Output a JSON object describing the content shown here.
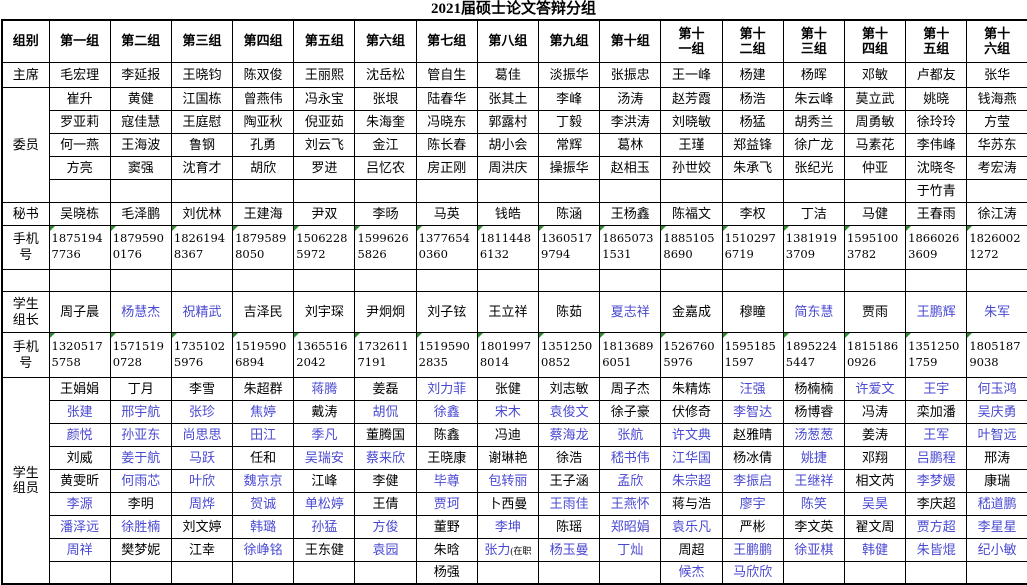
{
  "title": "2021届硕士论文答辩分组",
  "colors": {
    "name_blue": "#4a49d2",
    "corner_green": "#2e8b2e"
  },
  "table": {
    "corner_label": "组别",
    "group_headers": [
      "第一组",
      "第二组",
      "第三组",
      "第四组",
      "第五组",
      "第六组",
      "第七组",
      "第八组",
      "第九组",
      "第十组",
      "第十\n一组",
      "第十\n二组",
      "第十\n三组",
      "第十\n四组",
      "第十\n五组",
      "第十\n六组"
    ],
    "sections": [
      {
        "label": "主席",
        "rows": [
          [
            "毛宏理",
            "李延报",
            "王晓钧",
            "陈双俊",
            "王丽熙",
            "沈岳松",
            "管自生",
            "葛佳",
            "淡振华",
            "张振忠",
            "王一峰",
            "杨建",
            "杨晖",
            "邓敏",
            "卢都友",
            "张华"
          ]
        ]
      },
      {
        "label": "委员",
        "rows": [
          [
            "崔升",
            "黄健",
            "江国栋",
            "曾燕伟",
            "冯永宝",
            "张垠",
            "陆春华",
            "张其土",
            "李峰",
            "汤涛",
            "赵芳霞",
            "杨浩",
            "朱云峰",
            "莫立武",
            "姚晓",
            "钱海燕"
          ],
          [
            "罗亚莉",
            "寇佳慧",
            "王庭慰",
            "陶亚秋",
            "倪亚茹",
            "朱海奎",
            "冯晓东",
            "郭露村",
            "丁毅",
            "李洪涛",
            "刘晓敏",
            "杨猛",
            "胡秀兰",
            "周勇敏",
            "徐玲玲",
            "方莹"
          ],
          [
            "何一燕",
            "王海波",
            "鲁钢",
            "孔勇",
            "刘云飞",
            "金江",
            "陈长春",
            "胡小会",
            "常辉",
            "葛林",
            "王瑾",
            "郑益锋",
            "徐广龙",
            "马素花",
            "李伟峰",
            "华苏东"
          ],
          [
            "方亮",
            "窦强",
            "沈育才",
            "胡欣",
            "罗进",
            "吕忆农",
            "房正刚",
            "周洪庆",
            "操振华",
            "赵相玉",
            "孙世姣",
            "朱承飞",
            "张纪光",
            "仲亚",
            "沈晓冬",
            "考宏涛"
          ],
          [
            "",
            "",
            "",
            "",
            "",
            "",
            "",
            "",
            "",
            "",
            "",
            "",
            "",
            "",
            "于竹青",
            ""
          ]
        ]
      },
      {
        "label": "秘书",
        "rows": [
          [
            "吴晓栋",
            "毛泽鹏",
            "刘优林",
            "王建海",
            "尹双",
            "李旸",
            "马英",
            "钱皓",
            "陈涵",
            "王杨鑫",
            "陈福文",
            "李权",
            "丁洁",
            "马健",
            "王春雨",
            "徐江涛"
          ]
        ]
      },
      {
        "label": "手机\n号",
        "phone": true,
        "rows": [
          [
            "18751947736",
            "18795900176",
            "18261948367",
            "18795898050",
            "15062285972",
            "15996265826",
            "13776540360",
            "18114486132",
            "13605179794",
            "18650731531",
            "18851058690",
            "15102976719",
            "13819193709",
            "15951003782",
            "18660263609",
            "18260021272"
          ]
        ]
      },
      {
        "label": "",
        "rows": [
          [
            "",
            "",
            "",
            "",
            "",
            "",
            "",
            "",
            "",
            "",
            "",
            "",
            "",
            "",
            "",
            ""
          ]
        ]
      },
      {
        "label": "学生\n组长",
        "rows": [
          [
            "周子晨",
            {
              "t": "杨慧杰",
              "b": 1
            },
            {
              "t": "祝精武",
              "b": 1
            },
            "吉泽民",
            "刘宇琛",
            "尹炯炯",
            "刘子铉",
            "王立祥",
            "陈茹",
            {
              "t": "夏志祥",
              "b": 1
            },
            "金嘉成",
            "穆瞳",
            {
              "t": "简东慧",
              "b": 1
            },
            "贾雨",
            {
              "t": "王鹏辉",
              "b": 1
            },
            {
              "t": "朱军",
              "b": 1
            }
          ]
        ]
      },
      {
        "label": "手机\n号",
        "phone": true,
        "rows": [
          [
            "13205175758",
            "15715190728",
            "17351025976",
            "15195906894",
            "13655162042",
            "17326117191",
            "15195902835",
            "18019978014",
            "13512500852",
            "18136896051",
            "15267605976",
            "15951851597",
            "18952245447",
            "18151860926",
            "13512501759",
            "18051879038"
          ]
        ]
      },
      {
        "label": "学生\n组员",
        "rows": [
          [
            "王娟娟",
            "丁月",
            "李雪",
            "朱超群",
            {
              "t": "蒋腾",
              "b": 1
            },
            "姜磊",
            {
              "t": "刘力菲",
              "b": 1
            },
            "张健",
            "刘志敏",
            "周子杰",
            "朱精炼",
            {
              "t": "汪强",
              "b": 1
            },
            "杨楠楠",
            {
              "t": "许爱文",
              "b": 1
            },
            {
              "t": "王宇",
              "b": 1
            },
            {
              "t": "何玉鸿",
              "b": 1
            }
          ],
          [
            {
              "t": "张建",
              "b": 1
            },
            {
              "t": "邢宇航",
              "b": 1
            },
            {
              "t": "张珍",
              "b": 1
            },
            {
              "t": "焦婷",
              "b": 1
            },
            "戴涛",
            {
              "t": "胡侃",
              "b": 1
            },
            {
              "t": "徐鑫",
              "b": 1
            },
            {
              "t": "宋木",
              "b": 1
            },
            {
              "t": "袁俊文",
              "b": 1
            },
            "徐子豪",
            "伏修奇",
            {
              "t": "李智达",
              "b": 1
            },
            "杨博睿",
            "冯涛",
            "栾加潘",
            {
              "t": "吴庆勇",
              "b": 1
            }
          ],
          [
            {
              "t": "颜悦",
              "b": 1
            },
            {
              "t": "孙亚东",
              "b": 1
            },
            {
              "t": "尚思思",
              "b": 1
            },
            {
              "t": "田江",
              "b": 1
            },
            {
              "t": "季凡",
              "b": 1
            },
            "董腾国",
            "陈鑫",
            "冯迪",
            {
              "t": "蔡海龙",
              "b": 1
            },
            {
              "t": "张航",
              "b": 1
            },
            {
              "t": "许文典",
              "b": 1
            },
            "赵雅晴",
            {
              "t": "汤葱葱",
              "b": 1
            },
            "姜涛",
            {
              "t": "王军",
              "b": 1
            },
            {
              "t": "叶智远",
              "b": 1
            }
          ],
          [
            "刘威",
            {
              "t": "姜于航",
              "b": 1
            },
            {
              "t": "马跃",
              "b": 1
            },
            "任和",
            {
              "t": "吴瑞安",
              "b": 1
            },
            {
              "t": "蔡来欣",
              "b": 1
            },
            "王晓康",
            "谢琳艳",
            "徐浩",
            {
              "t": "嵇书伟",
              "b": 1
            },
            {
              "t": "江华国",
              "b": 1
            },
            "杨冰倩",
            {
              "t": "姚捷",
              "b": 1
            },
            "邓翔",
            {
              "t": "吕鹏程",
              "b": 1
            },
            "邢涛"
          ],
          [
            "黄雯昕",
            {
              "t": "何雨芯",
              "b": 1
            },
            {
              "t": "叶欣",
              "b": 1
            },
            {
              "t": "魏京京",
              "b": 1
            },
            "江峰",
            "李健",
            {
              "t": "毕尊",
              "b": 1
            },
            {
              "t": "包转丽",
              "b": 1
            },
            "王子涵",
            {
              "t": "孟欣",
              "b": 1
            },
            {
              "t": "朱宗超",
              "b": 1
            },
            {
              "t": "李振启",
              "b": 1
            },
            {
              "t": "王继祥",
              "b": 1
            },
            "相文芮",
            {
              "t": "李梦媛",
              "b": 1
            },
            "康瑞"
          ],
          [
            {
              "t": "李源",
              "b": 1
            },
            "李明",
            {
              "t": "周烨",
              "b": 1
            },
            {
              "t": "贺诚",
              "b": 1
            },
            {
              "t": "单松婷",
              "b": 1
            },
            "王倩",
            {
              "t": "贾珂",
              "b": 1
            },
            "卜西曼",
            {
              "t": "王雨佳",
              "b": 1
            },
            {
              "t": "王燕怀",
              "b": 1
            },
            "蒋与浩",
            {
              "t": "廖宇",
              "b": 1
            },
            {
              "t": "陈笑",
              "b": 1
            },
            {
              "t": "吴昊",
              "b": 1
            },
            "李庆超",
            {
              "t": "嵇道鹏",
              "b": 1
            }
          ],
          [
            {
              "t": "潘泽远",
              "b": 1
            },
            {
              "t": "徐胜楠",
              "b": 1
            },
            "刘文婷",
            {
              "t": "韩璐",
              "b": 1
            },
            {
              "t": "孙猛",
              "b": 1
            },
            {
              "t": "方俊",
              "b": 1
            },
            "董野",
            {
              "t": "李坤",
              "b": 1
            },
            "陈瑶",
            {
              "t": "郑昭娟",
              "b": 1
            },
            {
              "t": "袁乐凡",
              "b": 1
            },
            "严彬",
            "李文英",
            "翟文周",
            {
              "t": "贾方超",
              "b": 1
            },
            {
              "t": "李星星",
              "b": 1
            }
          ],
          [
            {
              "t": "周祥",
              "b": 1
            },
            "樊梦妮",
            "江幸",
            {
              "t": "徐峥铭",
              "b": 1
            },
            "王东健",
            {
              "t": "袁园",
              "b": 1
            },
            "朱晗",
            {
              "t": "张力",
              "s": "(在职",
              "b": 1
            },
            {
              "t": "杨玉曼",
              "b": 1
            },
            {
              "t": "丁灿",
              "b": 1
            },
            "周超",
            {
              "t": "王鹏鹏",
              "b": 1
            },
            {
              "t": "徐亚棋",
              "b": 1
            },
            {
              "t": "韩健",
              "b": 1
            },
            {
              "t": "朱皆焜",
              "b": 1
            },
            {
              "t": "纪小敏",
              "b": 1
            }
          ],
          [
            "",
            "",
            "",
            "",
            "",
            "",
            "杨强",
            "",
            "",
            "",
            {
              "t": "候杰",
              "b": 1
            },
            {
              "t": "马欣欣",
              "b": 1
            },
            "",
            "",
            "",
            ""
          ]
        ]
      }
    ]
  }
}
